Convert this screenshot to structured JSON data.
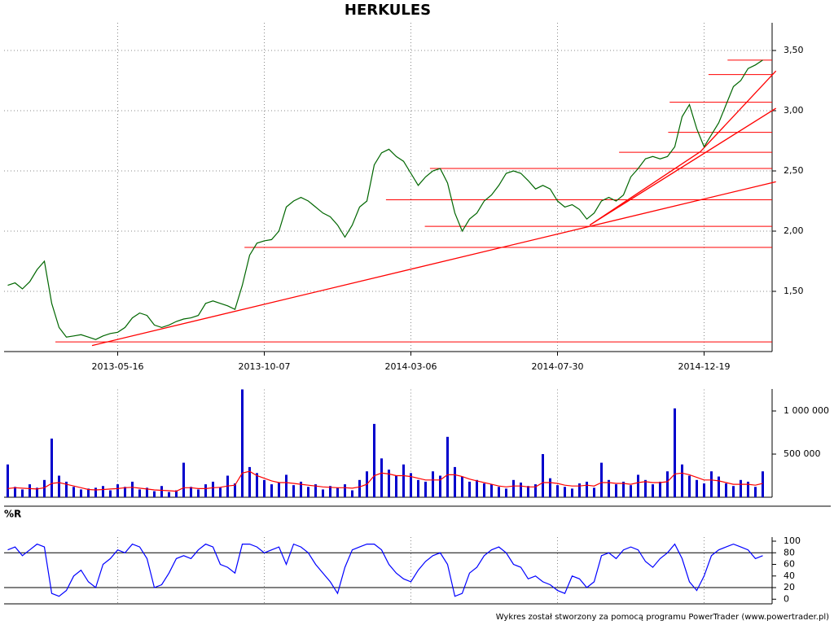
{
  "chart_data": [
    {
      "type": "line",
      "title": "HERKULES",
      "categories": [
        null,
        null,
        null,
        null,
        null,
        null,
        null,
        null,
        null,
        null,
        null,
        null,
        null,
        null,
        null,
        "2013-05-16",
        null,
        null,
        null,
        null,
        null,
        null,
        null,
        null,
        null,
        null,
        null,
        null,
        null,
        null,
        null,
        null,
        null,
        null,
        null,
        "2013-10-07",
        null,
        null,
        null,
        null,
        null,
        null,
        null,
        null,
        null,
        null,
        null,
        null,
        null,
        null,
        null,
        null,
        null,
        null,
        null,
        "2014-03-06",
        null,
        null,
        null,
        null,
        null,
        null,
        null,
        null,
        null,
        null,
        null,
        null,
        null,
        null,
        null,
        null,
        null,
        null,
        null,
        "2014-07-30",
        null,
        null,
        null,
        null,
        null,
        null,
        null,
        null,
        null,
        null,
        null,
        null,
        null,
        null,
        null,
        null,
        null,
        null,
        null,
        "2014-12-19",
        null,
        null,
        null,
        null,
        null,
        null,
        null,
        null
      ],
      "series": [
        {
          "color": "#006600",
          "values": [
            1.55,
            1.57,
            1.52,
            1.58,
            1.68,
            1.75,
            1.4,
            1.2,
            1.12,
            1.13,
            1.14,
            1.12,
            1.1,
            1.13,
            1.15,
            1.16,
            1.2,
            1.28,
            1.32,
            1.3,
            1.22,
            1.2,
            1.22,
            1.25,
            1.27,
            1.28,
            1.3,
            1.4,
            1.42,
            1.4,
            1.38,
            1.35,
            1.55,
            1.8,
            1.9,
            1.92,
            1.93,
            2.0,
            2.2,
            2.25,
            2.28,
            2.25,
            2.2,
            2.15,
            2.12,
            2.05,
            1.95,
            2.05,
            2.2,
            2.25,
            2.55,
            2.65,
            2.68,
            2.62,
            2.58,
            2.48,
            2.38,
            2.45,
            2.5,
            2.52,
            2.4,
            2.15,
            2.0,
            2.1,
            2.15,
            2.25,
            2.3,
            2.38,
            2.48,
            2.5,
            2.48,
            2.42,
            2.35,
            2.38,
            2.35,
            2.25,
            2.2,
            2.22,
            2.18,
            2.1,
            2.15,
            2.25,
            2.28,
            2.25,
            2.3,
            2.45,
            2.52,
            2.6,
            2.62,
            2.6,
            2.62,
            2.7,
            2.95,
            3.05,
            2.85,
            2.7,
            2.8,
            2.9,
            3.05,
            3.2,
            3.25,
            3.35,
            3.38,
            3.42
          ]
        }
      ],
      "ylim": [
        1.0,
        3.73
      ],
      "yticks": [
        {
          "value": 1.5,
          "label": "1,50"
        },
        {
          "value": 2.0,
          "label": "2,00"
        },
        {
          "value": 2.5,
          "label": "2,50"
        },
        {
          "value": 3.0,
          "label": "3,00"
        },
        {
          "value": 3.5,
          "label": "3,50"
        }
      ],
      "grid": true,
      "line_color": "#ff0000",
      "hlines": [
        {
          "value": 1.08,
          "from": 6.5
        },
        {
          "value": 1.865,
          "from": 32.3
        },
        {
          "value": 2.04,
          "from": 56.9
        },
        {
          "value": 2.26,
          "from": 51.6
        },
        {
          "value": 2.52,
          "from": 57.6
        },
        {
          "value": 2.655,
          "from": 83.4
        },
        {
          "value": 2.82,
          "from": 90.1
        },
        {
          "value": 3.07,
          "from": 90.3
        },
        {
          "value": 3.3,
          "from": 95.6
        },
        {
          "value": 3.42,
          "from": 98.2
        }
      ],
      "trendlines": [
        {
          "from": [
            11.5,
            1.05
          ],
          "to": [
            104.8,
            2.41
          ]
        },
        {
          "from": [
            79.4,
            2.05
          ],
          "to": [
            94.5,
            2.66
          ]
        },
        {
          "from": [
            94.5,
            2.66
          ],
          "to": [
            104.8,
            3.33
          ]
        },
        {
          "from": [
            79.4,
            2.05
          ],
          "to": [
            104.8,
            3.02
          ]
        }
      ]
    },
    {
      "type": "bar",
      "series": [
        {
          "color": "#0000cc",
          "values": [
            380000,
            120000,
            90000,
            150000,
            110000,
            200000,
            680000,
            250000,
            180000,
            120000,
            90000,
            100000,
            110000,
            130000,
            80000,
            150000,
            120000,
            180000,
            90000,
            110000,
            70000,
            130000,
            60000,
            80000,
            400000,
            120000,
            90000,
            150000,
            180000,
            110000,
            250000,
            160000,
            1250000,
            350000,
            280000,
            200000,
            150000,
            170000,
            260000,
            140000,
            180000,
            120000,
            150000,
            90000,
            130000,
            110000,
            150000,
            80000,
            200000,
            300000,
            850000,
            450000,
            320000,
            250000,
            380000,
            280000,
            200000,
            180000,
            300000,
            250000,
            700000,
            350000,
            240000,
            180000,
            200000,
            160000,
            150000,
            120000,
            100000,
            200000,
            170000,
            130000,
            150000,
            500000,
            220000,
            140000,
            120000,
            100000,
            160000,
            180000,
            110000,
            400000,
            200000,
            150000,
            180000,
            140000,
            260000,
            200000,
            150000,
            180000,
            300000,
            1030000,
            380000,
            250000,
            200000,
            160000,
            300000,
            240000,
            160000,
            130000,
            200000,
            180000,
            120000,
            300000
          ]
        },
        {
          "type": "line",
          "color": "#ff0000",
          "values": [
            100000,
            110000,
            105000,
            100000,
            95000,
            110000,
            160000,
            170000,
            150000,
            130000,
            110000,
            90000,
            85000,
            90000,
            95000,
            100000,
            110000,
            115000,
            105000,
            95000,
            85000,
            80000,
            75000,
            70000,
            110000,
            110000,
            100000,
            100000,
            110000,
            115000,
            130000,
            140000,
            280000,
            300000,
            250000,
            220000,
            190000,
            170000,
            170000,
            160000,
            150000,
            140000,
            130000,
            120000,
            115000,
            110000,
            110000,
            105000,
            120000,
            150000,
            250000,
            280000,
            270000,
            250000,
            250000,
            240000,
            220000,
            200000,
            200000,
            200000,
            260000,
            260000,
            240000,
            210000,
            190000,
            170000,
            150000,
            130000,
            120000,
            130000,
            130000,
            120000,
            120000,
            170000,
            170000,
            160000,
            140000,
            130000,
            130000,
            140000,
            130000,
            170000,
            170000,
            160000,
            160000,
            150000,
            170000,
            180000,
            170000,
            170000,
            180000,
            270000,
            280000,
            260000,
            230000,
            200000,
            200000,
            190000,
            170000,
            150000,
            150000,
            150000,
            140000,
            160000
          ]
        }
      ],
      "ylim": [
        0,
        1250000
      ],
      "yticks": [
        {
          "value": 500000,
          "label": "500 000"
        },
        {
          "value": 1000000,
          "label": "1 000 000"
        }
      ]
    },
    {
      "type": "line",
      "title": "%R",
      "series": [
        {
          "color": "#0000ff",
          "values": [
            85,
            90,
            75,
            85,
            95,
            90,
            10,
            5,
            15,
            40,
            50,
            30,
            20,
            60,
            70,
            85,
            80,
            95,
            90,
            70,
            20,
            25,
            45,
            70,
            75,
            70,
            85,
            95,
            90,
            60,
            55,
            45,
            95,
            95,
            90,
            80,
            85,
            90,
            60,
            95,
            90,
            80,
            60,
            45,
            30,
            10,
            55,
            85,
            90,
            95,
            95,
            85,
            60,
            45,
            35,
            30,
            50,
            65,
            75,
            80,
            60,
            5,
            10,
            45,
            55,
            75,
            85,
            90,
            80,
            60,
            55,
            35,
            40,
            30,
            25,
            15,
            10,
            40,
            35,
            20,
            30,
            75,
            80,
            70,
            85,
            90,
            85,
            65,
            55,
            70,
            80,
            95,
            70,
            30,
            15,
            40,
            75,
            85,
            90,
            95,
            90,
            85,
            70,
            75
          ]
        }
      ],
      "ylim": [
        -8,
        107
      ],
      "yticks": [
        0,
        20,
        40,
        60,
        80,
        100
      ],
      "levels": [
        20,
        80
      ]
    }
  ],
  "footer": "Wykres został stworzony za pomocą programu PowerTrader (www.powertrader.pl)"
}
